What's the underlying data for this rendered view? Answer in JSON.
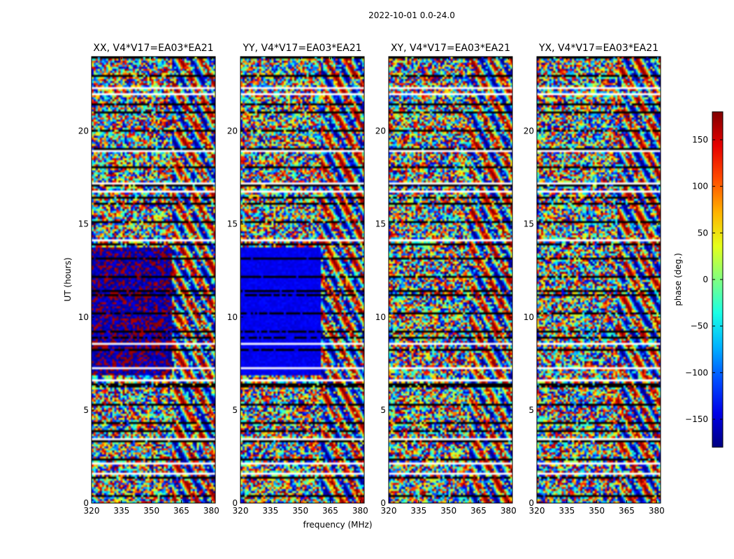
{
  "figure": {
    "suptitle": "2022-10-01 0.0-24.0"
  },
  "chart_data": {
    "type": "heatmap",
    "xlabel": "frequency (MHz)",
    "ylabel": "UT (hours)",
    "xlim": [
      320,
      382
    ],
    "ylim": [
      0,
      24
    ],
    "xticks": [
      320,
      335,
      350,
      365,
      380
    ],
    "yticks": [
      0,
      5,
      10,
      15,
      20
    ],
    "colorbar": {
      "label": "phase (deg.)",
      "range": [
        -180,
        180
      ],
      "ticks": [
        -150,
        -100,
        -50,
        0,
        50,
        100,
        150
      ],
      "tick_labels": [
        "−150",
        "−100",
        "−50",
        "0",
        "50",
        "100",
        "150"
      ],
      "colormap": "jet"
    },
    "panels": [
      {
        "title": "XX, V4*V17=EA03*EA21",
        "polarization": "XX",
        "coherent_block": {
          "ut_start": 6.8,
          "ut_end": 13.8,
          "freq_end": 360,
          "phase_deg": -170,
          "spread_deg": 60
        }
      },
      {
        "title": "YY, V4*V17=EA03*EA21",
        "polarization": "YY",
        "coherent_block": {
          "ut_start": 6.8,
          "ut_end": 13.8,
          "freq_end": 360,
          "phase_deg": -140,
          "spread_deg": 20
        }
      },
      {
        "title": "XY, V4*V17=EA03*EA21",
        "polarization": "XY",
        "coherent_block": null
      },
      {
        "title": "YX, V4*V17=EA03*EA21",
        "polarization": "YX",
        "coherent_block": null
      }
    ],
    "flagged_ut_hours": [
      1.5,
      2.1,
      3.4,
      6.6,
      7.2,
      8.5,
      14.1,
      16.8,
      17.2,
      19.0,
      22.0,
      22.4
    ]
  }
}
